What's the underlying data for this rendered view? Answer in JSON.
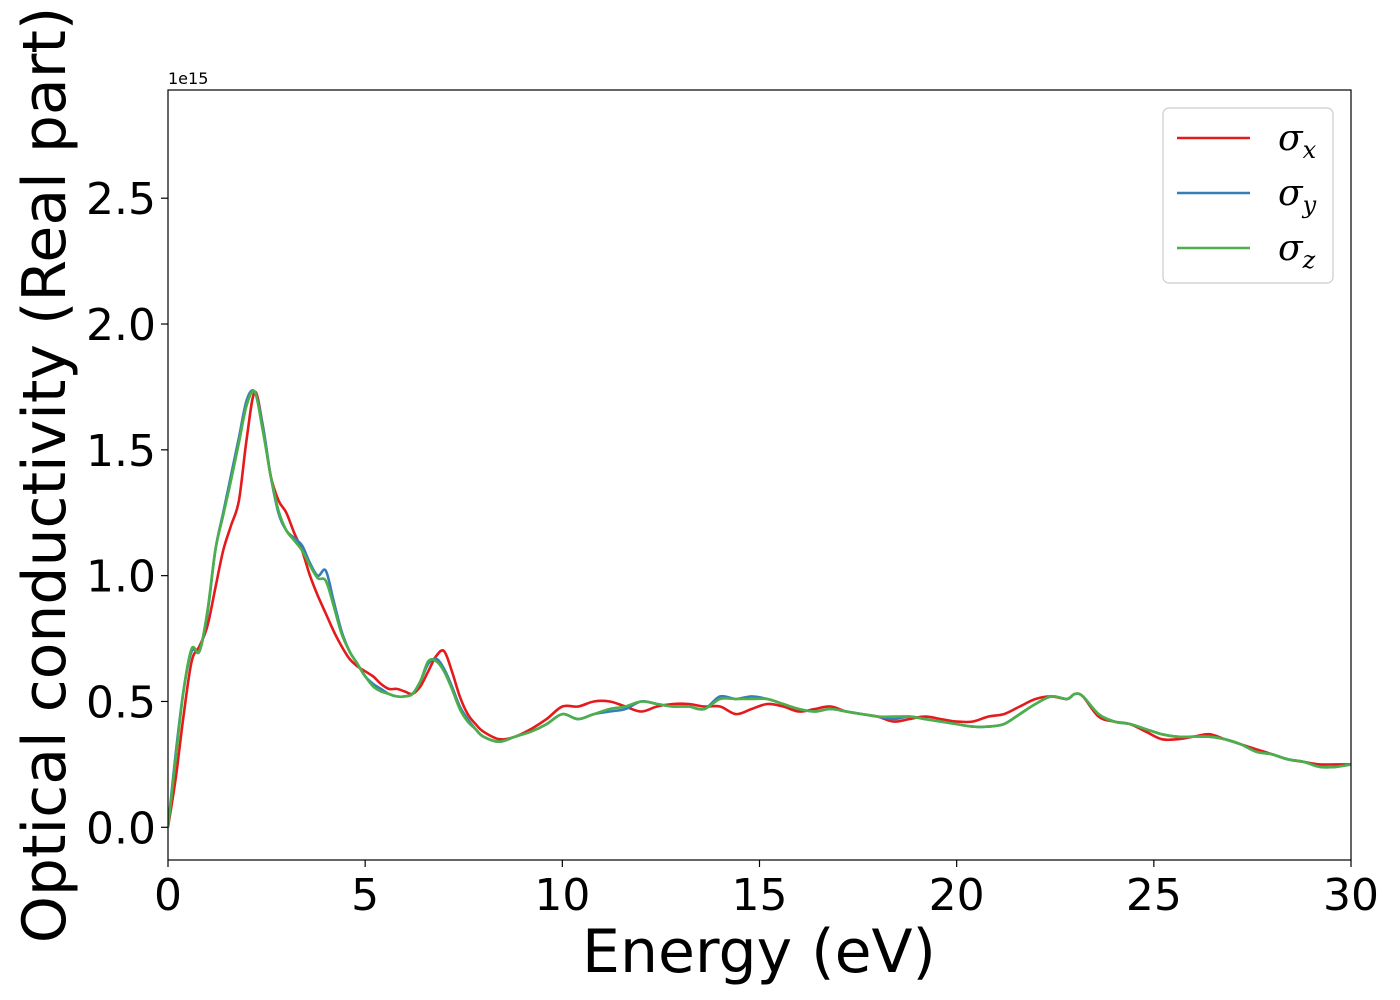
{
  "chart_data": {
    "type": "line",
    "xlabel": "Energy (eV)",
    "ylabel": "Optical conductivity (Real part)",
    "y_offset_label": "1e15",
    "xlim": [
      0,
      30
    ],
    "ylim": [
      -0.13,
      2.93
    ],
    "xticks": [
      0,
      5,
      10,
      15,
      20,
      25,
      30
    ],
    "xtick_labels": [
      "0",
      "5",
      "10",
      "15",
      "20",
      "25",
      "30"
    ],
    "yticks": [
      0.0,
      0.5,
      1.0,
      1.5,
      2.0,
      2.5
    ],
    "ytick_labels": [
      "0.0",
      "0.5",
      "1.0",
      "1.5",
      "2.0",
      "2.5"
    ],
    "grid": false,
    "legend_position": "top-right",
    "series": [
      {
        "name": "σx",
        "symbol": "σ",
        "subscript": "x",
        "color": "#e41a1c",
        "x": [
          0,
          0.2,
          0.4,
          0.6,
          0.8,
          1.0,
          1.2,
          1.4,
          1.6,
          1.8,
          2.0,
          2.2,
          2.4,
          2.6,
          2.8,
          3.0,
          3.2,
          3.4,
          3.6,
          3.8,
          4.0,
          4.2,
          4.4,
          4.6,
          4.8,
          5.0,
          5.2,
          5.4,
          5.6,
          5.8,
          6.0,
          6.2,
          6.4,
          6.6,
          6.8,
          7.0,
          7.2,
          7.4,
          7.6,
          7.8,
          8.0,
          8.4,
          8.8,
          9.2,
          9.6,
          10.0,
          10.4,
          10.8,
          11.2,
          11.6,
          12.0,
          12.4,
          12.8,
          13.2,
          13.6,
          14.0,
          14.4,
          14.8,
          15.2,
          15.6,
          16.0,
          16.4,
          16.8,
          17.2,
          17.6,
          18.0,
          18.4,
          18.8,
          19.2,
          19.6,
          20.0,
          20.4,
          20.8,
          21.2,
          21.6,
          22.0,
          22.4,
          22.8,
          23.0,
          23.2,
          23.6,
          24.0,
          24.4,
          24.8,
          25.2,
          25.6,
          26.0,
          26.4,
          26.8,
          27.2,
          27.6,
          28.0,
          28.4,
          28.8,
          29.2,
          29.6,
          30.0
        ],
        "y": [
          0.0,
          0.2,
          0.45,
          0.66,
          0.72,
          0.8,
          0.95,
          1.1,
          1.2,
          1.3,
          1.55,
          1.73,
          1.6,
          1.4,
          1.3,
          1.25,
          1.17,
          1.1,
          1.0,
          0.92,
          0.85,
          0.78,
          0.72,
          0.67,
          0.64,
          0.62,
          0.6,
          0.57,
          0.55,
          0.55,
          0.54,
          0.53,
          0.56,
          0.62,
          0.68,
          0.7,
          0.62,
          0.52,
          0.45,
          0.41,
          0.38,
          0.35,
          0.36,
          0.39,
          0.43,
          0.48,
          0.48,
          0.5,
          0.5,
          0.48,
          0.46,
          0.48,
          0.49,
          0.49,
          0.48,
          0.48,
          0.45,
          0.47,
          0.49,
          0.48,
          0.46,
          0.47,
          0.48,
          0.46,
          0.45,
          0.44,
          0.42,
          0.43,
          0.44,
          0.43,
          0.42,
          0.42,
          0.44,
          0.45,
          0.48,
          0.51,
          0.52,
          0.51,
          0.53,
          0.52,
          0.44,
          0.42,
          0.41,
          0.38,
          0.35,
          0.35,
          0.36,
          0.37,
          0.35,
          0.33,
          0.31,
          0.29,
          0.27,
          0.26,
          0.25,
          0.25,
          0.25
        ]
      },
      {
        "name": "σy",
        "symbol": "σ",
        "subscript": "y",
        "color": "#377eb8",
        "x": [
          0,
          0.2,
          0.4,
          0.6,
          0.8,
          1.0,
          1.2,
          1.4,
          1.6,
          1.8,
          2.0,
          2.2,
          2.4,
          2.6,
          2.8,
          3.0,
          3.2,
          3.4,
          3.6,
          3.8,
          4.0,
          4.2,
          4.4,
          4.6,
          4.8,
          5.0,
          5.2,
          5.4,
          5.6,
          5.8,
          6.0,
          6.2,
          6.4,
          6.6,
          6.8,
          7.0,
          7.2,
          7.4,
          7.6,
          7.8,
          8.0,
          8.4,
          8.8,
          9.2,
          9.6,
          10.0,
          10.4,
          10.8,
          11.2,
          11.6,
          12.0,
          12.4,
          12.8,
          13.2,
          13.6,
          14.0,
          14.4,
          14.8,
          15.2,
          15.6,
          16.0,
          16.4,
          16.8,
          17.2,
          17.6,
          18.0,
          18.4,
          18.8,
          19.2,
          19.6,
          20.0,
          20.4,
          20.8,
          21.2,
          21.6,
          22.0,
          22.4,
          22.8,
          23.0,
          23.2,
          23.6,
          24.0,
          24.4,
          24.8,
          25.2,
          25.6,
          26.0,
          26.4,
          26.8,
          27.2,
          27.6,
          28.0,
          28.4,
          28.8,
          29.2,
          29.6,
          30.0
        ],
        "y": [
          0.0,
          0.3,
          0.55,
          0.7,
          0.7,
          0.85,
          1.1,
          1.25,
          1.4,
          1.55,
          1.7,
          1.73,
          1.6,
          1.4,
          1.25,
          1.18,
          1.15,
          1.12,
          1.05,
          1.0,
          1.02,
          0.9,
          0.78,
          0.7,
          0.65,
          0.6,
          0.57,
          0.55,
          0.53,
          0.52,
          0.52,
          0.53,
          0.58,
          0.65,
          0.67,
          0.63,
          0.56,
          0.48,
          0.43,
          0.39,
          0.36,
          0.34,
          0.36,
          0.38,
          0.41,
          0.45,
          0.43,
          0.45,
          0.46,
          0.47,
          0.5,
          0.49,
          0.48,
          0.48,
          0.47,
          0.52,
          0.51,
          0.52,
          0.51,
          0.49,
          0.47,
          0.46,
          0.47,
          0.46,
          0.45,
          0.44,
          0.43,
          0.44,
          0.43,
          0.42,
          0.41,
          0.4,
          0.4,
          0.41,
          0.45,
          0.49,
          0.52,
          0.51,
          0.53,
          0.52,
          0.45,
          0.42,
          0.41,
          0.39,
          0.37,
          0.36,
          0.36,
          0.36,
          0.35,
          0.33,
          0.3,
          0.29,
          0.27,
          0.26,
          0.24,
          0.24,
          0.25
        ]
      },
      {
        "name": "σz",
        "symbol": "σ",
        "subscript": "z",
        "color": "#4daf4a",
        "x": [
          0,
          0.2,
          0.4,
          0.6,
          0.8,
          1.0,
          1.2,
          1.4,
          1.6,
          1.8,
          2.0,
          2.2,
          2.4,
          2.6,
          2.8,
          3.0,
          3.2,
          3.4,
          3.6,
          3.8,
          4.0,
          4.2,
          4.4,
          4.6,
          4.8,
          5.0,
          5.2,
          5.4,
          5.6,
          5.8,
          6.0,
          6.2,
          6.4,
          6.6,
          6.8,
          7.0,
          7.2,
          7.4,
          7.6,
          7.8,
          8.0,
          8.4,
          8.8,
          9.2,
          9.6,
          10.0,
          10.4,
          10.8,
          11.2,
          11.6,
          12.0,
          12.4,
          12.8,
          13.2,
          13.6,
          14.0,
          14.4,
          14.8,
          15.2,
          15.6,
          16.0,
          16.4,
          16.8,
          17.2,
          17.6,
          18.0,
          18.4,
          18.8,
          19.2,
          19.6,
          20.0,
          20.4,
          20.8,
          21.2,
          21.6,
          22.0,
          22.4,
          22.8,
          23.0,
          23.2,
          23.6,
          24.0,
          24.4,
          24.8,
          25.2,
          25.6,
          26.0,
          26.4,
          26.8,
          27.2,
          27.6,
          28.0,
          28.4,
          28.8,
          29.2,
          29.6,
          30.0
        ],
        "y": [
          0.0,
          0.28,
          0.55,
          0.71,
          0.7,
          0.86,
          1.1,
          1.24,
          1.38,
          1.53,
          1.68,
          1.73,
          1.58,
          1.4,
          1.26,
          1.18,
          1.14,
          1.1,
          1.04,
          0.99,
          0.98,
          0.88,
          0.77,
          0.7,
          0.65,
          0.6,
          0.56,
          0.54,
          0.53,
          0.52,
          0.52,
          0.53,
          0.58,
          0.66,
          0.66,
          0.62,
          0.55,
          0.47,
          0.42,
          0.39,
          0.36,
          0.34,
          0.36,
          0.38,
          0.41,
          0.45,
          0.43,
          0.45,
          0.47,
          0.48,
          0.5,
          0.49,
          0.48,
          0.48,
          0.47,
          0.51,
          0.51,
          0.51,
          0.51,
          0.49,
          0.47,
          0.46,
          0.47,
          0.46,
          0.45,
          0.44,
          0.44,
          0.44,
          0.43,
          0.42,
          0.41,
          0.4,
          0.4,
          0.41,
          0.45,
          0.49,
          0.52,
          0.51,
          0.53,
          0.52,
          0.45,
          0.42,
          0.41,
          0.39,
          0.37,
          0.36,
          0.36,
          0.36,
          0.35,
          0.33,
          0.3,
          0.29,
          0.27,
          0.26,
          0.24,
          0.24,
          0.25
        ]
      }
    ]
  }
}
